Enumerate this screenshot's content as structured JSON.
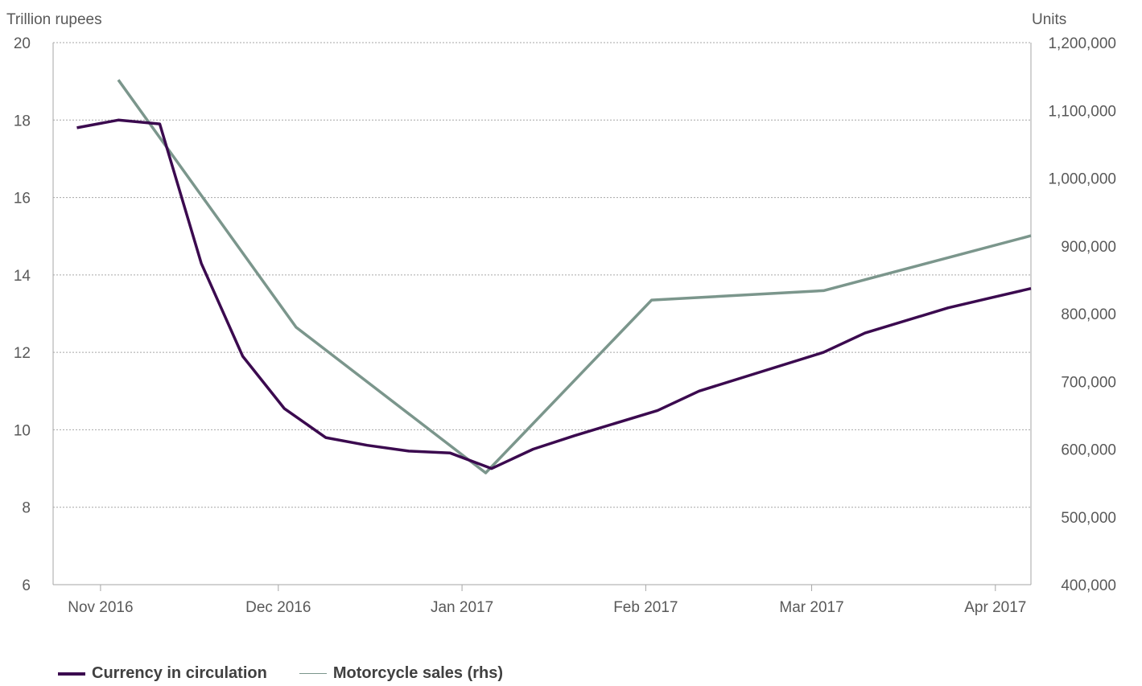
{
  "chart_data": {
    "type": "line",
    "left_axis_label": "Trillion rupees",
    "right_axis_label": "Units",
    "left_ylim": [
      6,
      20
    ],
    "left_yticks": [
      "6",
      "8",
      "10",
      "12",
      "14",
      "16",
      "18",
      "20"
    ],
    "right_ylim": [
      400000,
      1200000
    ],
    "right_yticks": [
      "400,000",
      "500,000",
      "600,000",
      "700,000",
      "800,000",
      "900,000",
      "1,000,000",
      "1,100,000",
      "1,200,000"
    ],
    "x_tick_labels": [
      "Nov 2016",
      "Dec 2016",
      "Jan 2017",
      "Feb 2017",
      "Mar 2017",
      "Apr 2017"
    ],
    "x_tick_dates": [
      "2016-11-01",
      "2016-12-01",
      "2017-01-01",
      "2017-02-01",
      "2017-03-01",
      "2017-04-01"
    ],
    "x_range": [
      "2016-10-24",
      "2017-04-07"
    ],
    "grid": "horizontal dotted",
    "legend_position": "bottom-left",
    "series": [
      {
        "name": "Currency in circulation",
        "axis": "left",
        "color": "#3b0a4f",
        "dates": [
          "2016-10-28",
          "2016-11-04",
          "2016-11-11",
          "2016-11-18",
          "2016-11-25",
          "2016-12-02",
          "2016-12-09",
          "2016-12-16",
          "2016-12-23",
          "2016-12-30",
          "2017-01-06",
          "2017-01-13",
          "2017-01-20",
          "2017-02-03",
          "2017-02-10",
          "2017-03-03",
          "2017-03-10",
          "2017-03-24",
          "2017-03-31",
          "2017-04-07"
        ],
        "values": [
          17.8,
          18.0,
          17.9,
          14.3,
          11.9,
          10.55,
          9.8,
          9.6,
          9.45,
          9.4,
          9.0,
          9.5,
          9.85,
          10.5,
          11.0,
          12.0,
          12.5,
          13.15,
          13.4,
          13.65
        ]
      },
      {
        "name": "Motorcycle sales (rhs)",
        "axis": "right",
        "color": "#7b968c",
        "dates": [
          "2016-11-04",
          "2016-12-04",
          "2017-01-05",
          "2017-02-02",
          "2017-03-03",
          "2017-04-07"
        ],
        "values": [
          1145000,
          780000,
          565000,
          820000,
          834000,
          915000
        ]
      }
    ]
  }
}
